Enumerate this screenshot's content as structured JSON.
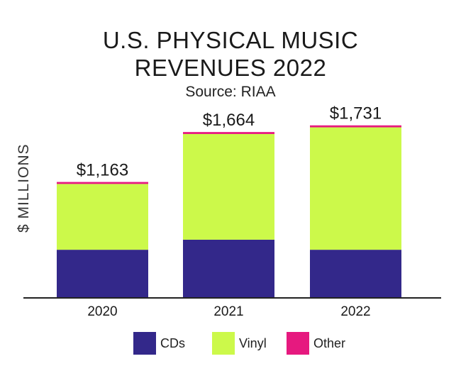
{
  "chart_data": {
    "type": "bar",
    "stacked": true,
    "title_line1": "U.S. PHYSICAL MUSIC",
    "title_line2": "REVENUES 2022",
    "subtitle": "Source: RIAA",
    "xlabel": "",
    "ylabel": "$ MILLIONS",
    "ylim": [
      0,
      1850
    ],
    "grid": false,
    "legend_position": "bottom",
    "categories": [
      "2020",
      "2021",
      "2022"
    ],
    "totals": [
      1163,
      1664,
      1731
    ],
    "total_labels": [
      "$1,163",
      "$1,664",
      "$1,731"
    ],
    "series": [
      {
        "name": "CDs",
        "color": "#33288a",
        "values": [
          483,
          584,
          483
        ]
      },
      {
        "name": "Vinyl",
        "color": "#ccf94a",
        "values": [
          660,
          1060,
          1228
        ]
      },
      {
        "name": "Other",
        "color": "#e6197f",
        "values": [
          20,
          20,
          20
        ]
      }
    ]
  }
}
